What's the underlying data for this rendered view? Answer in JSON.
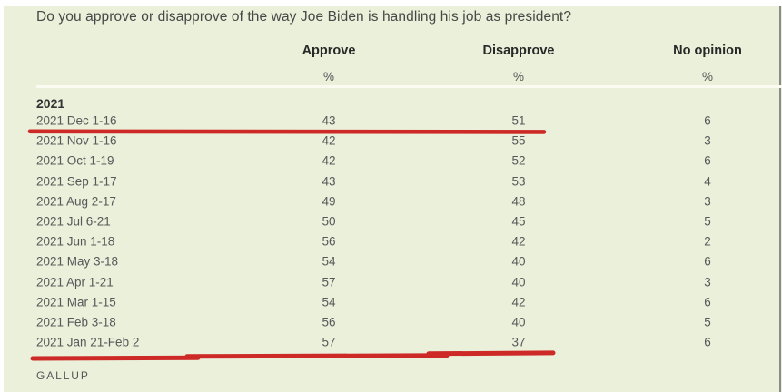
{
  "question": "Do you approve or disapprove of the way Joe Biden is handling his job as president?",
  "source": "GALLUP",
  "chart_data": {
    "type": "table",
    "title": "Do you approve or disapprove of the way Joe Biden is handling his job as president?",
    "columns": [
      "Approve",
      "Disapprove",
      "No opinion"
    ],
    "unit": "%",
    "group_label": "2021",
    "rows": [
      {
        "date": "2021 Dec 1-16",
        "approve": 43,
        "disapprove": 51,
        "no_opinion": 6,
        "underlined": true
      },
      {
        "date": "2021 Nov 1-16",
        "approve": 42,
        "disapprove": 55,
        "no_opinion": 3,
        "underlined": false
      },
      {
        "date": "2021 Oct 1-19",
        "approve": 42,
        "disapprove": 52,
        "no_opinion": 6,
        "underlined": false
      },
      {
        "date": "2021 Sep 1-17",
        "approve": 43,
        "disapprove": 53,
        "no_opinion": 4,
        "underlined": false
      },
      {
        "date": "2021 Aug 2-17",
        "approve": 49,
        "disapprove": 48,
        "no_opinion": 3,
        "underlined": false
      },
      {
        "date": "2021 Jul 6-21",
        "approve": 50,
        "disapprove": 45,
        "no_opinion": 5,
        "underlined": false
      },
      {
        "date": "2021 Jun 1-18",
        "approve": 56,
        "disapprove": 42,
        "no_opinion": 2,
        "underlined": false
      },
      {
        "date": "2021 May 3-18",
        "approve": 54,
        "disapprove": 40,
        "no_opinion": 6,
        "underlined": false
      },
      {
        "date": "2021 Apr 1-21",
        "approve": 57,
        "disapprove": 40,
        "no_opinion": 3,
        "underlined": false
      },
      {
        "date": "2021 Mar 1-15",
        "approve": 54,
        "disapprove": 42,
        "no_opinion": 6,
        "underlined": false
      },
      {
        "date": "2021 Feb 3-18",
        "approve": 56,
        "disapprove": 40,
        "no_opinion": 5,
        "underlined": false
      },
      {
        "date": "2021 Jan 21-Feb 2",
        "approve": 57,
        "disapprove": 37,
        "no_opinion": 6,
        "underlined": true
      }
    ]
  },
  "colors": {
    "background": "#eaf0d9",
    "annotation_red": "#cd2a27"
  }
}
